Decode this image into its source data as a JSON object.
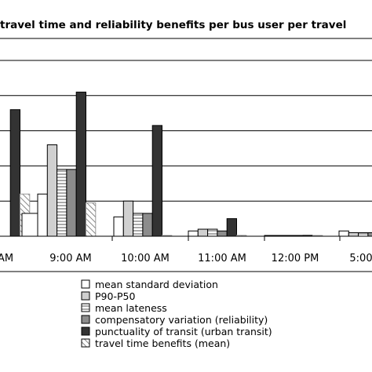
{
  "chart_data": {
    "type": "bar",
    "title": "travel time and reliability benefits per bus user per travel",
    "categories": [
      "AM",
      "9:00 AM",
      "10:00 AM",
      "11:00 AM",
      "12:00 PM",
      "5:00"
    ],
    "series": [
      {
        "name": "mean standard deviation",
        "key": "sd",
        "values": [
          null,
          0.24,
          0.11,
          0.03,
          0.0,
          0.03
        ]
      },
      {
        "name": "P90-P50",
        "key": "p90",
        "values": [
          null,
          0.52,
          0.2,
          0.04,
          0.0,
          0.02
        ]
      },
      {
        "name": "mean lateness",
        "key": "late",
        "values": [
          null,
          0.38,
          0.13,
          0.04,
          0.0,
          0.02
        ]
      },
      {
        "name": "compensatory variation (reliability)",
        "key": "comp",
        "values": [
          null,
          0.38,
          0.13,
          0.03,
          0.0,
          0.02
        ]
      },
      {
        "name": "punctuality of transit (urban transit)",
        "key": "punct",
        "values": [
          0.72,
          0.82,
          0.63,
          0.1,
          0.005,
          0.03
        ]
      },
      {
        "name": "travel time benefits (mean)",
        "key": "tt",
        "values": [
          0.24,
          0.19,
          0.0,
          0.005,
          0.0,
          0.0
        ]
      }
    ],
    "partial_first_group": {
      "sd": 0.13
    },
    "ylim": [
      0,
      1
    ],
    "grid": true,
    "legend_position": "bottom"
  }
}
